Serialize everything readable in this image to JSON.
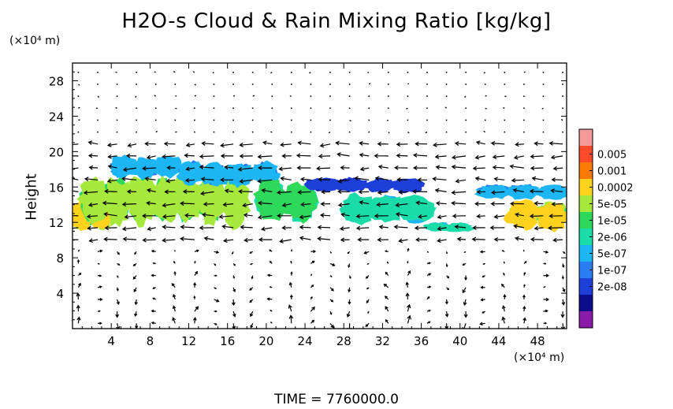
{
  "chart_data": {
    "type": "heatmap",
    "title": "H2O-s Cloud & Rain Mixing Ratio [kg/kg]",
    "ylabel": "Height",
    "x_unit_label": "(×10⁴ m)",
    "y_unit_label": "(×10⁴ m)",
    "time_label": "TIME = 7760000.0",
    "xlim": [
      0,
      51
    ],
    "ylim": [
      0,
      30
    ],
    "x_ticks": [
      "4",
      "8",
      "12",
      "16",
      "20",
      "24",
      "28",
      "32",
      "36",
      "40",
      "44",
      "48"
    ],
    "y_ticks": [
      "4",
      "8",
      "12",
      "16",
      "20",
      "24",
      "28"
    ],
    "colorbar": {
      "labels": [
        "0.005",
        "0.001",
        "0.0002",
        "5e-05",
        "1e-05",
        "2e-06",
        "5e-07",
        "1e-07",
        "2e-08"
      ],
      "colors": [
        "#f49a9a",
        "#ff4b2a",
        "#ff7a00",
        "#ffd21e",
        "#a6e83c",
        "#2dd85a",
        "#19dca8",
        "#1cb6f4",
        "#2a7df2",
        "#1e3ed8",
        "#0d0d8c",
        "#8a1aa8"
      ]
    },
    "cloud_regions": [
      {
        "x": [
          0,
          4
        ],
        "y": [
          11.3,
          14.5
        ],
        "level": "0.0002"
      },
      {
        "x": [
          1,
          18
        ],
        "y": [
          12,
          17
        ],
        "level": "5e-05"
      },
      {
        "x": [
          4,
          11
        ],
        "y": [
          17,
          19.3
        ],
        "level": "5e-07"
      },
      {
        "x": [
          11,
          21
        ],
        "y": [
          16.3,
          18.8
        ],
        "level": "5e-07"
      },
      {
        "x": [
          19,
          25
        ],
        "y": [
          12.3,
          16.5
        ],
        "level": "1e-05"
      },
      {
        "x": [
          24.5,
          36
        ],
        "y": [
          15.5,
          17
        ],
        "level": "2e-08"
      },
      {
        "x": [
          28,
          37
        ],
        "y": [
          12,
          15
        ],
        "level": "2e-06"
      },
      {
        "x": [
          42,
          51
        ],
        "y": [
          14.8,
          16.3
        ],
        "level": "5e-07"
      },
      {
        "x": [
          45,
          51
        ],
        "y": [
          11.3,
          14.3
        ],
        "level": "0.0002"
      },
      {
        "x": [
          36.5,
          41
        ],
        "y": [
          11,
          12
        ],
        "level": "2e-06"
      }
    ]
  }
}
